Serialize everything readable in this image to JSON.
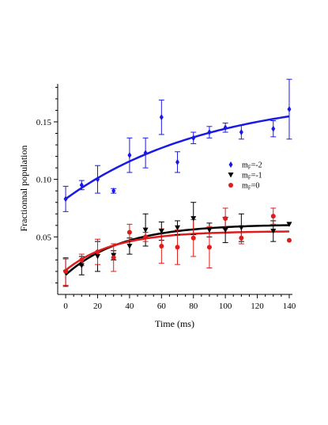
{
  "chart_data": {
    "type": "scatter",
    "xlabel": "Time (ms)",
    "ylabel": "Fractionnal population",
    "xlim": [
      -5,
      142
    ],
    "ylim": [
      0.0,
      0.183
    ],
    "xticks": [
      0,
      20,
      40,
      60,
      80,
      100,
      120,
      140
    ],
    "yticks": [
      0.05,
      0.1,
      0.15
    ],
    "xtick_labels": [
      "0",
      "20",
      "40",
      "60",
      "80",
      "100",
      "120",
      "140"
    ],
    "ytick_labels": [
      "0.05",
      "0.10",
      "0.15"
    ],
    "grid": false,
    "legend_position": "right",
    "series": [
      {
        "name": "mF=-2",
        "name_main": "m",
        "name_sub": "F",
        "name_rest": "=-2",
        "color": "#1a1ae6",
        "marker": "diamond",
        "x": [
          0,
          10,
          20,
          30,
          40,
          50,
          60,
          70,
          80,
          90,
          100,
          110,
          130,
          140
        ],
        "y": [
          0.083,
          0.095,
          0.1,
          0.09,
          0.121,
          0.123,
          0.154,
          0.115,
          0.136,
          0.141,
          0.145,
          0.141,
          0.144,
          0.161
        ],
        "err": [
          0.011,
          0.004,
          0.012,
          0.002,
          0.015,
          0.013,
          0.015,
          0.009,
          0.005,
          0.005,
          0.004,
          0.006,
          0.007,
          0.026
        ],
        "fit": {
          "a": 0.083,
          "b": 0.174,
          "tau": 90
        }
      },
      {
        "name": "mF=-1",
        "name_main": "m",
        "name_sub": "F",
        "name_rest": "=-1",
        "color": "#000000",
        "marker": "triangle-down",
        "x": [
          0,
          10,
          20,
          30,
          40,
          50,
          60,
          70,
          80,
          90,
          100,
          110,
          130,
          140
        ],
        "y": [
          0.019,
          0.025,
          0.033,
          0.034,
          0.042,
          0.056,
          0.055,
          0.058,
          0.066,
          0.056,
          0.056,
          0.058,
          0.055,
          0.061
        ],
        "err": [
          0.012,
          0.008,
          0.013,
          0.004,
          0.007,
          0.014,
          0.008,
          0.006,
          0.014,
          0.006,
          0.011,
          0.012,
          0.009,
          0.0
        ],
        "fit": {
          "a": 0.017,
          "b": 0.061,
          "tau": 35
        }
      },
      {
        "name": "mF=0",
        "name_main": "m",
        "name_sub": "F",
        "name_rest": "=0",
        "color": "#e01b1b",
        "marker": "circle",
        "x": [
          0,
          10,
          20,
          30,
          40,
          50,
          60,
          70,
          80,
          90,
          100,
          110,
          130,
          140
        ],
        "y": [
          0.02,
          0.03,
          0.037,
          0.032,
          0.054,
          0.05,
          0.042,
          0.041,
          0.049,
          0.041,
          0.066,
          0.049,
          0.068,
          0.047
        ],
        "err": [
          0.012,
          0.005,
          0.011,
          0.012,
          0.007,
          0.004,
          0.015,
          0.015,
          0.016,
          0.018,
          0.009,
          0.005,
          0.007,
          0.0
        ],
        "fit": {
          "a": 0.021,
          "b": 0.055,
          "tau": 30
        }
      }
    ]
  }
}
